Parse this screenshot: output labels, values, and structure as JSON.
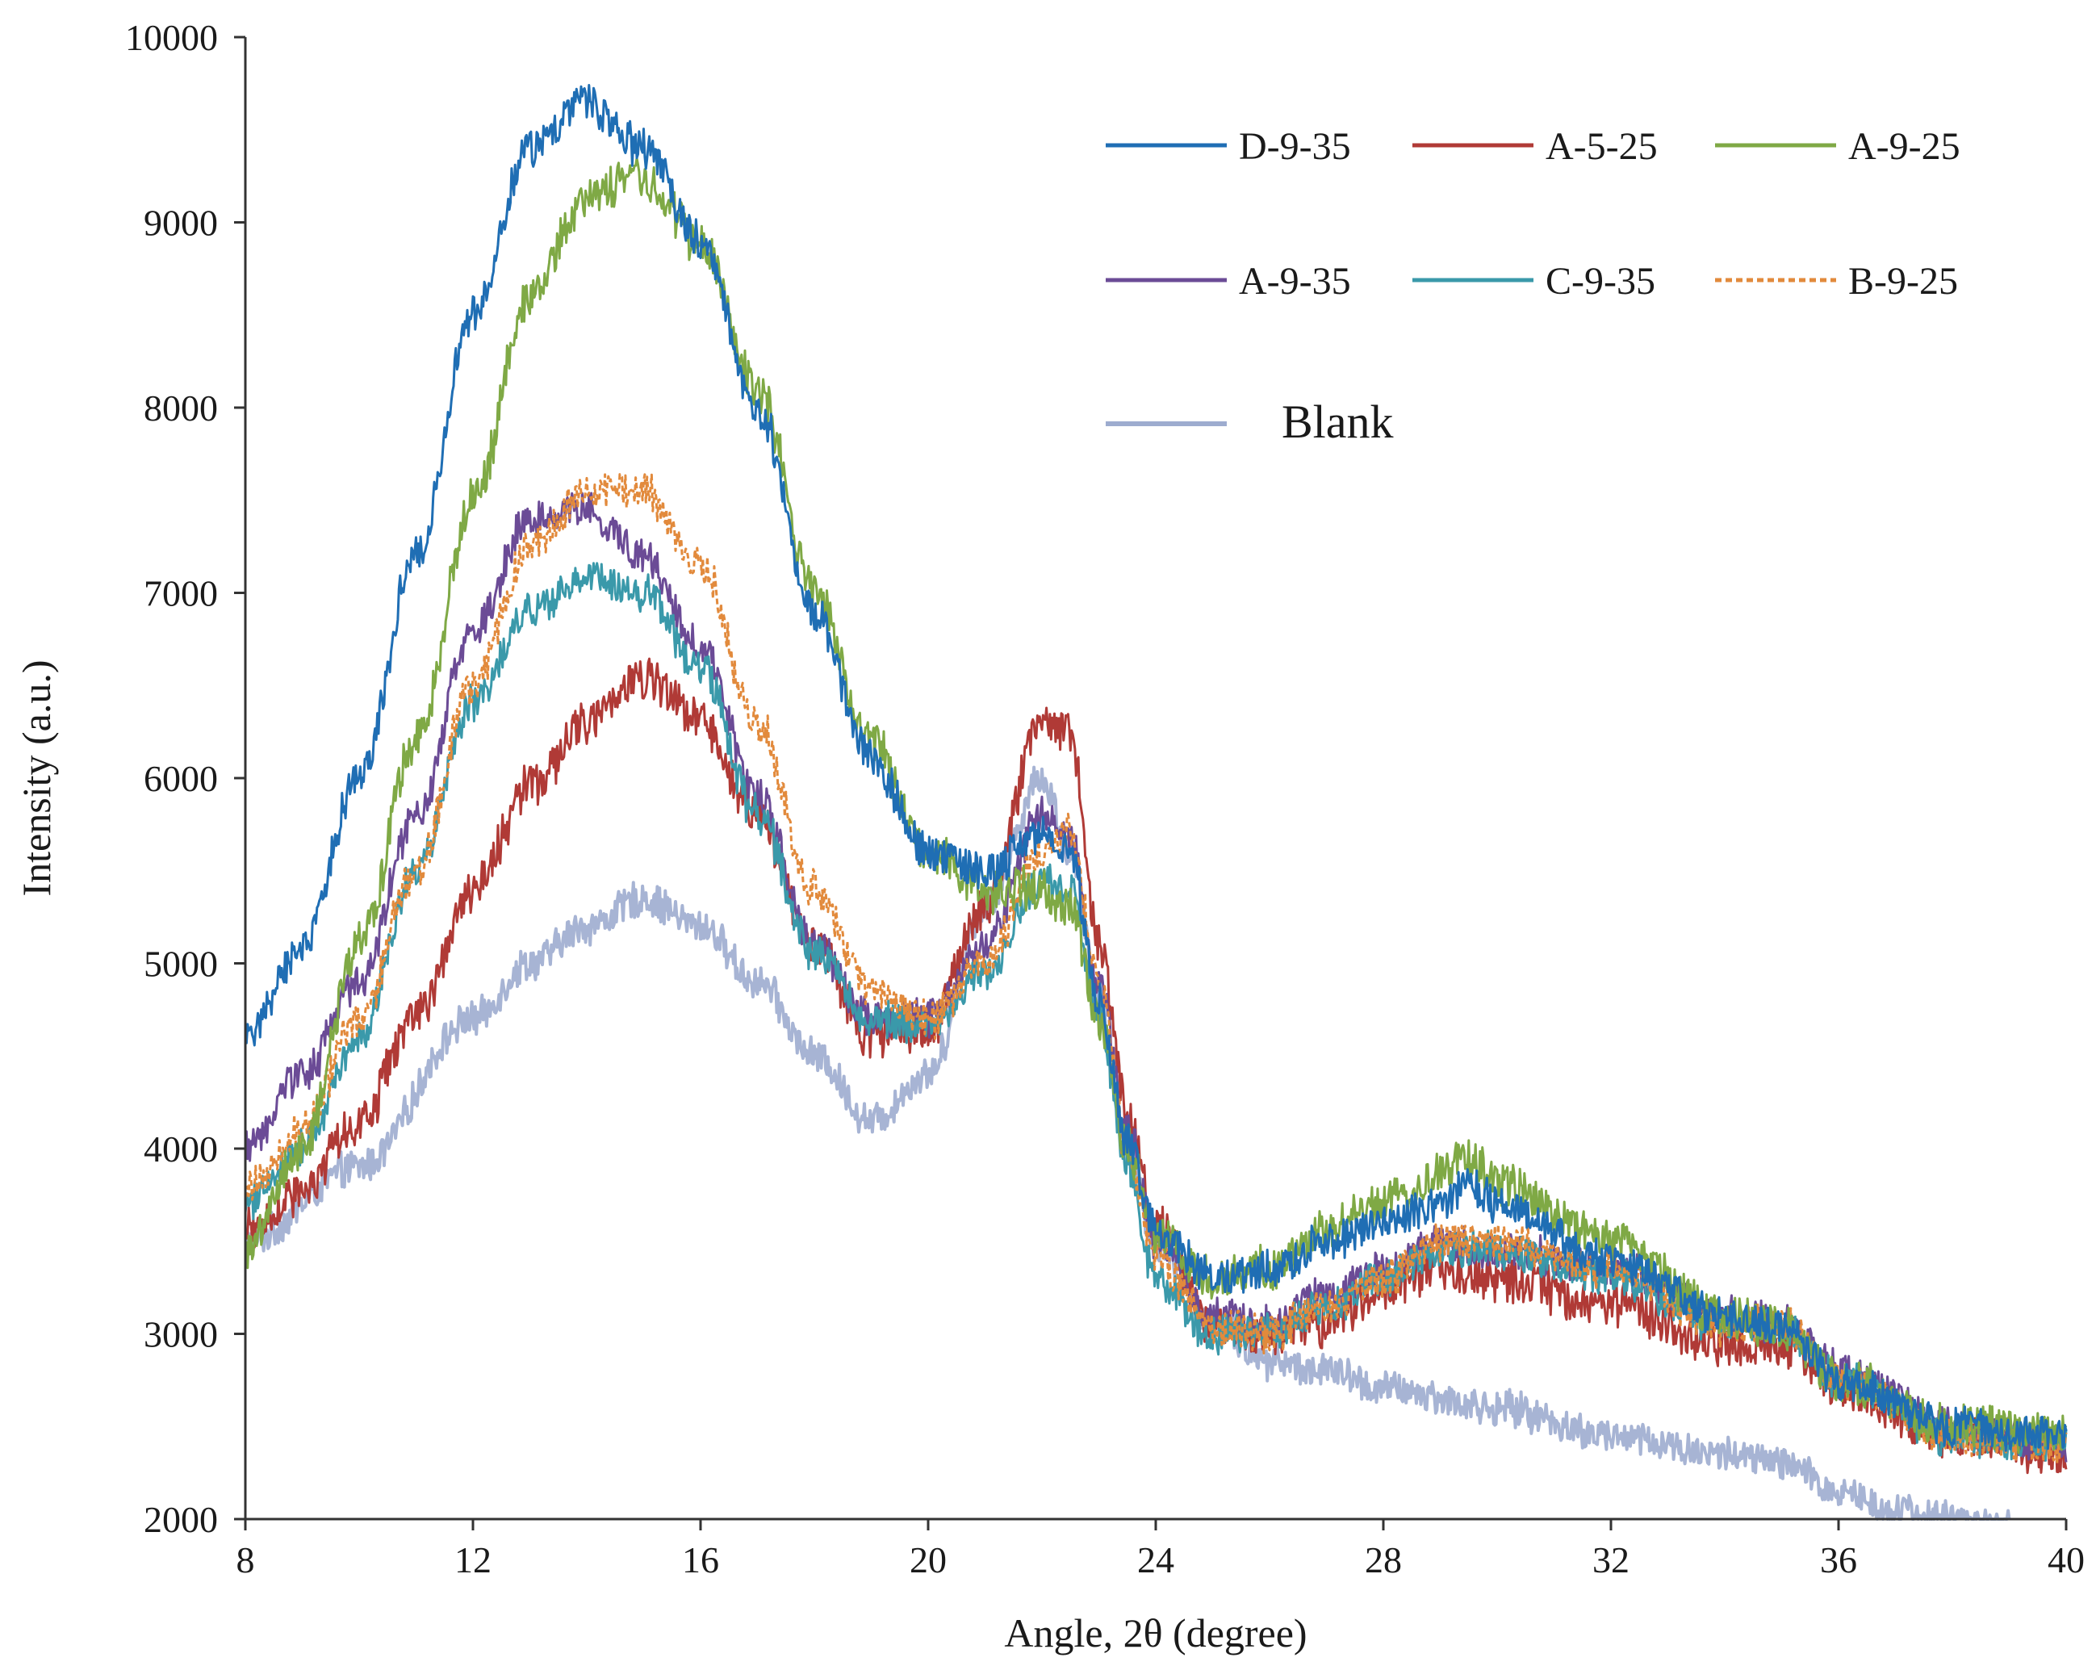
{
  "chart_data": {
    "type": "line",
    "title": "",
    "xlabel": "Angle, 2θ (degree)",
    "ylabel": "Intensity (a.u.)",
    "xlim": [
      8,
      40
    ],
    "ylim": [
      2000,
      10000
    ],
    "x_ticks": [
      8,
      12,
      16,
      20,
      24,
      28,
      32,
      36,
      40
    ],
    "y_ticks": [
      2000,
      3000,
      4000,
      5000,
      6000,
      7000,
      8000,
      9000,
      10000
    ],
    "x_tick_labels": [
      "8",
      "12",
      "16",
      "20",
      "24",
      "28",
      "32",
      "36",
      "40"
    ],
    "y_tick_labels": [
      "2000",
      "3000",
      "4000",
      "5000",
      "6000",
      "7000",
      "8000",
      "9000",
      "10000"
    ],
    "grid": false,
    "legend_position": "top-right",
    "series": [
      {
        "name": "Blank",
        "color": "#9daccf",
        "dash": "solid",
        "noise": 110,
        "x": [
          8,
          10,
          12,
          13,
          14,
          15,
          16,
          17,
          18,
          19,
          20,
          21,
          22,
          22.5,
          23,
          23.5,
          24,
          25,
          26,
          27,
          28,
          30,
          32,
          34,
          35,
          36,
          37,
          38,
          39
        ],
        "y": [
          3500,
          3900,
          4700,
          5000,
          5200,
          5350,
          5200,
          4900,
          4500,
          4150,
          4400,
          5300,
          6000,
          5600,
          4800,
          4000,
          3500,
          3050,
          2850,
          2800,
          2700,
          2600,
          2450,
          2350,
          2300,
          2150,
          2050,
          2000,
          1950
        ]
      },
      {
        "name": "A-5-25",
        "color": "#b03a36",
        "dash": "solid",
        "noise": 140,
        "x": [
          8,
          9,
          10,
          11,
          12,
          13,
          14,
          15,
          16,
          17,
          18,
          19,
          20,
          21,
          22,
          22.5,
          23,
          23.5,
          24,
          25,
          26,
          27,
          28,
          29,
          30,
          32,
          34,
          35,
          36,
          38,
          40
        ],
        "y": [
          3550,
          3750,
          4150,
          4700,
          5400,
          5950,
          6300,
          6550,
          6300,
          5800,
          5100,
          4600,
          4650,
          5300,
          6300,
          6250,
          5100,
          4200,
          3600,
          3050,
          3000,
          3050,
          3250,
          3350,
          3300,
          3150,
          2950,
          2950,
          2700,
          2450,
          2350
        ]
      },
      {
        "name": "A-9-35",
        "color": "#6b4b96",
        "dash": "solid",
        "noise": 120,
        "x": [
          8,
          9,
          10,
          11,
          12,
          13,
          14,
          15,
          16,
          17,
          18,
          19,
          20,
          21,
          22,
          22.5,
          23,
          23.5,
          24,
          25,
          26,
          27,
          28,
          29,
          30,
          32,
          34,
          35,
          36,
          38,
          40
        ],
        "y": [
          4000,
          4400,
          4900,
          5800,
          6800,
          7400,
          7450,
          7200,
          6700,
          5900,
          5100,
          4700,
          4700,
          5100,
          5800,
          5700,
          4900,
          4100,
          3500,
          3100,
          3050,
          3200,
          3350,
          3500,
          3450,
          3350,
          3100,
          3050,
          2800,
          2500,
          2400
        ]
      },
      {
        "name": "C-9-35",
        "color": "#3a99aa",
        "dash": "solid",
        "noise": 120,
        "x": [
          8,
          9,
          10,
          11,
          12,
          13,
          14,
          15,
          16,
          17,
          18,
          19,
          20,
          21,
          22,
          22.5,
          23,
          23.5,
          24,
          25,
          26,
          27,
          28,
          29,
          30,
          32,
          34,
          35,
          36,
          38,
          40
        ],
        "y": [
          3700,
          4000,
          4600,
          5500,
          6400,
          6900,
          7100,
          7000,
          6600,
          5800,
          5050,
          4700,
          4650,
          4950,
          5450,
          5400,
          4700,
          3900,
          3300,
          3000,
          3000,
          3150,
          3300,
          3450,
          3450,
          3300,
          3050,
          3050,
          2750,
          2450,
          2400
        ]
      },
      {
        "name": "B-9-25",
        "color": "#e28a3c",
        "dash": "dashed",
        "noise": 120,
        "x": [
          8,
          9,
          10,
          11,
          12,
          13,
          14,
          15,
          16,
          17,
          18,
          19,
          20,
          21,
          22,
          22.5,
          23,
          23.5,
          24,
          25,
          26,
          27,
          28,
          29,
          30,
          32,
          34,
          35,
          36,
          38,
          40
        ],
        "y": [
          3800,
          4100,
          4700,
          5500,
          6500,
          7250,
          7550,
          7550,
          7150,
          6300,
          5400,
          4850,
          4700,
          5000,
          5600,
          5700,
          4900,
          4000,
          3400,
          3050,
          3000,
          3150,
          3300,
          3500,
          3500,
          3350,
          3050,
          3050,
          2750,
          2450,
          2400
        ]
      },
      {
        "name": "A-9-25",
        "color": "#7fa945",
        "dash": "solid",
        "noise": 140,
        "x": [
          8,
          9,
          10,
          11,
          12,
          13,
          14,
          15,
          16,
          17,
          18,
          19,
          20,
          21,
          22,
          22.5,
          23,
          23.5,
          24,
          25,
          26,
          27,
          28,
          29,
          29.5,
          30,
          32,
          34,
          35,
          36,
          38,
          40
        ],
        "y": [
          3450,
          4000,
          5100,
          6200,
          7500,
          8600,
          9150,
          9250,
          8900,
          8100,
          7000,
          6200,
          5600,
          5400,
          5400,
          5300,
          4700,
          4000,
          3550,
          3300,
          3350,
          3550,
          3700,
          3850,
          3950,
          3800,
          3500,
          3100,
          3050,
          2750,
          2500,
          2450
        ]
      },
      {
        "name": "D-9-35",
        "color": "#1f6eb4",
        "dash": "solid",
        "noise": 120,
        "x": [
          8,
          9,
          10,
          11,
          12,
          13,
          14,
          15,
          16,
          17,
          18,
          19,
          20,
          21,
          22,
          22.5,
          23,
          23.5,
          24,
          25,
          26,
          27,
          28,
          29,
          29.5,
          30,
          32,
          34,
          35,
          36,
          38,
          40
        ],
        "y": [
          4600,
          5100,
          6000,
          7200,
          8500,
          9400,
          9650,
          9400,
          8900,
          8000,
          6900,
          6100,
          5600,
          5500,
          5700,
          5600,
          4800,
          4050,
          3550,
          3300,
          3350,
          3500,
          3600,
          3700,
          3800,
          3700,
          3400,
          3100,
          3050,
          2750,
          2500,
          2450
        ]
      }
    ],
    "legend": [
      {
        "label": "D-9-35",
        "series": "D-9-35"
      },
      {
        "label": "A-5-25",
        "series": "A-5-25"
      },
      {
        "label": "A-9-25",
        "series": "A-9-25"
      },
      {
        "label": "A-9-35",
        "series": "A-9-35"
      },
      {
        "label": "C-9-35",
        "series": "C-9-35"
      },
      {
        "label": "B-9-25",
        "series": "B-9-25"
      },
      {
        "label": "Blank",
        "series": "Blank"
      }
    ]
  }
}
